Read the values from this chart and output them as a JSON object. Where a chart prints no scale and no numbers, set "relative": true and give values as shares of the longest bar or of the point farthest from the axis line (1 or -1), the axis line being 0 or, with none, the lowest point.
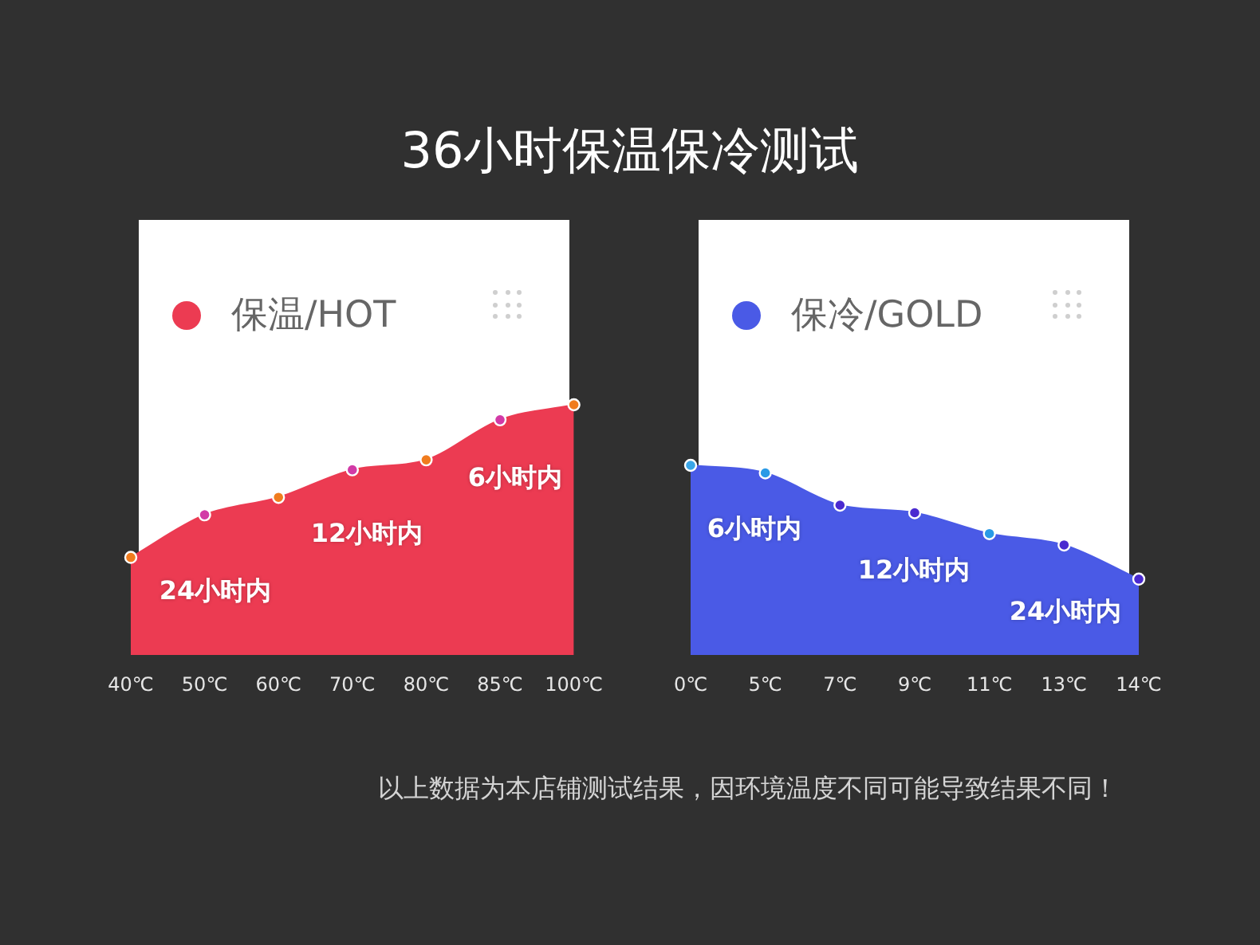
{
  "chart_data": [
    {
      "type": "area",
      "title": "36小时保温保冷测试",
      "categories": [
        "40℃",
        "50℃",
        "60℃",
        "70℃",
        "80℃",
        "85℃",
        "100℃"
      ],
      "series": [
        {
          "name": "保温/HOT",
          "color": "#ec3b52",
          "colors": [
            "#f07c1e",
            "#d23aa6",
            "#f07c1e",
            "#d23aa6",
            "#f07c1e",
            "#d23aa6",
            "#f07c1e"
          ],
          "values": [
            0.39,
            0.56,
            0.63,
            0.74,
            0.78,
            0.94,
            1
          ]
        }
      ],
      "relative": true,
      "legend": "top left",
      "marker": "circle",
      "tick_labels": "x",
      "annotations": [
        "24小时内",
        "12小时内",
        "6小时内"
      ]
    },
    {
      "type": "area",
      "categories": [
        "0℃",
        "5℃",
        "7℃",
        "9℃",
        "11℃",
        "13℃",
        "14℃"
      ],
      "series": [
        {
          "name": "保冷/GOLD",
          "color": "#4a5ae6",
          "colors": [
            "#3aa6e8",
            "#2a9ae6",
            "#4a2ad0",
            "#4a2ad0",
            "#2a9ae6",
            "#4a2ad0",
            "#4a2ad0"
          ],
          "values": [
            1,
            0.96,
            0.79,
            0.75,
            0.64,
            0.58,
            0.4
          ]
        }
      ],
      "relative": true,
      "legend": "top left",
      "marker": "circle",
      "tick_labels": "x",
      "annotations": [
        "6小时内",
        "12小时内",
        "24小时内",
        "以上数据为本店铺测试结果，因环境温度不同可能导致结果不同！"
      ]
    }
  ]
}
